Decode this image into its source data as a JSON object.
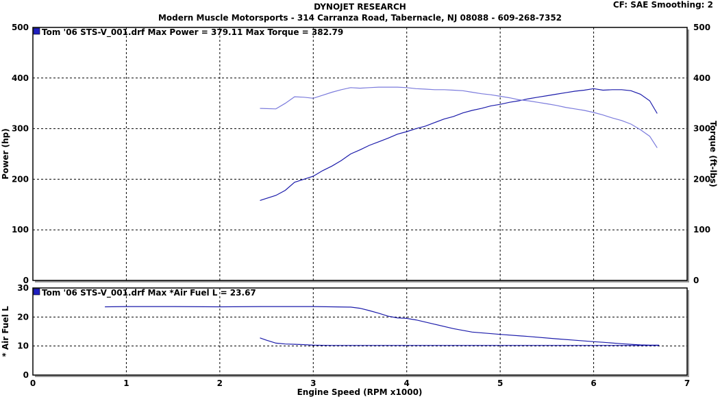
{
  "header": {
    "title": "DYNOJET RESEARCH",
    "subtitle": "Modern Muscle Motorsports - 314 Carranza Road, Tabernacle, NJ 08088 - 609-268-7352",
    "settings": "CF: SAE  Smoothing: 2"
  },
  "chart_data": [
    {
      "type": "line",
      "legend": "Tom '06 STS-V_001.drf Max Power = 379.11    Max Torque = 382.79",
      "xlabel": "Engine Speed (RPM x1000)",
      "ylabel": "Power (hp)",
      "ylabel_right": "Torque (ft-lbs)",
      "xlim": [
        0,
        7
      ],
      "ylim": [
        0,
        500
      ],
      "x_ticks": [
        0,
        1,
        2,
        3,
        4,
        5,
        6,
        7
      ],
      "y_ticks": [
        0,
        100,
        200,
        300,
        400,
        500
      ],
      "grid": true,
      "colors": {
        "power": "#1a1aaa",
        "torque": "#7a7adc"
      },
      "series": [
        {
          "key": "power",
          "x": [
            2.43,
            2.6,
            2.7,
            2.8,
            2.9,
            3.0,
            3.1,
            3.2,
            3.3,
            3.4,
            3.5,
            3.6,
            3.7,
            3.8,
            3.9,
            4.0,
            4.1,
            4.2,
            4.3,
            4.4,
            4.5,
            4.6,
            4.7,
            4.8,
            4.9,
            5.0,
            5.1,
            5.2,
            5.3,
            5.4,
            5.5,
            5.6,
            5.7,
            5.8,
            5.9,
            6.0,
            6.1,
            6.2,
            6.3,
            6.4,
            6.5,
            6.6,
            6.68
          ],
          "y": [
            158,
            168,
            178,
            194,
            200,
            206,
            217,
            226,
            237,
            250,
            258,
            267,
            274,
            281,
            289,
            294,
            300,
            305,
            312,
            319,
            324,
            331,
            336,
            340,
            345,
            348,
            352,
            355,
            359,
            362,
            365,
            368,
            371,
            374,
            376,
            379,
            376,
            377,
            377,
            375,
            368,
            355,
            330
          ]
        },
        {
          "key": "torque",
          "x": [
            2.43,
            2.6,
            2.7,
            2.8,
            2.9,
            3.0,
            3.1,
            3.2,
            3.3,
            3.4,
            3.5,
            3.6,
            3.7,
            3.8,
            3.9,
            4.0,
            4.1,
            4.2,
            4.3,
            4.4,
            4.5,
            4.6,
            4.7,
            4.8,
            4.9,
            5.0,
            5.1,
            5.2,
            5.3,
            5.4,
            5.5,
            5.6,
            5.7,
            5.8,
            5.9,
            6.0,
            6.1,
            6.2,
            6.3,
            6.4,
            6.5,
            6.6,
            6.68
          ],
          "y": [
            340,
            339,
            350,
            363,
            362,
            360,
            366,
            372,
            377,
            381,
            380,
            381,
            382,
            382,
            382,
            381,
            379,
            378,
            377,
            377,
            376,
            375,
            372,
            369,
            367,
            364,
            361,
            357,
            355,
            352,
            349,
            346,
            342,
            339,
            336,
            332,
            327,
            321,
            316,
            309,
            298,
            285,
            262
          ]
        }
      ]
    },
    {
      "type": "line",
      "legend": "Tom '06 STS-V_001.drf Max *Air Fuel L = 23.67",
      "xlabel": "Engine Speed (RPM x1000)",
      "ylabel": "* Air Fuel L",
      "xlim": [
        0,
        7
      ],
      "ylim": [
        0,
        30
      ],
      "x_ticks": [
        0,
        1,
        2,
        3,
        4,
        5,
        6,
        7
      ],
      "y_ticks": [
        0,
        10,
        20,
        30
      ],
      "grid": true,
      "colors": {
        "afr": "#1a1aaa"
      },
      "series": [
        {
          "key": "afr_high",
          "x": [
            0.77,
            1.0,
            1.5,
            2.0,
            2.5,
            3.0,
            3.2,
            3.4,
            3.5,
            3.6,
            3.7,
            3.8,
            3.9,
            4.0,
            4.1,
            4.3,
            4.5,
            4.7,
            5.0,
            5.3,
            5.6,
            5.8,
            6.0,
            6.1,
            6.3,
            6.5,
            6.6,
            6.7
          ],
          "y": [
            23.5,
            23.6,
            23.6,
            23.5,
            23.6,
            23.6,
            23.5,
            23.4,
            23.0,
            22.2,
            21.3,
            20.3,
            19.7,
            19.5,
            19.0,
            17.5,
            16.0,
            14.8,
            14.0,
            13.3,
            12.5,
            12.0,
            11.5,
            11.3,
            10.8,
            10.4,
            10.3,
            10.3
          ]
        },
        {
          "key": "afr_low",
          "x": [
            2.43,
            2.5,
            2.6,
            2.7,
            2.8,
            2.9,
            3.0,
            3.2,
            3.5,
            4.0,
            4.5,
            5.0,
            5.5,
            6.0,
            6.5,
            6.7
          ],
          "y": [
            12.8,
            12.0,
            11.0,
            10.7,
            10.6,
            10.5,
            10.3,
            10.2,
            10.2,
            10.2,
            10.2,
            10.2,
            10.2,
            10.2,
            10.2,
            10.2
          ]
        }
      ]
    }
  ]
}
